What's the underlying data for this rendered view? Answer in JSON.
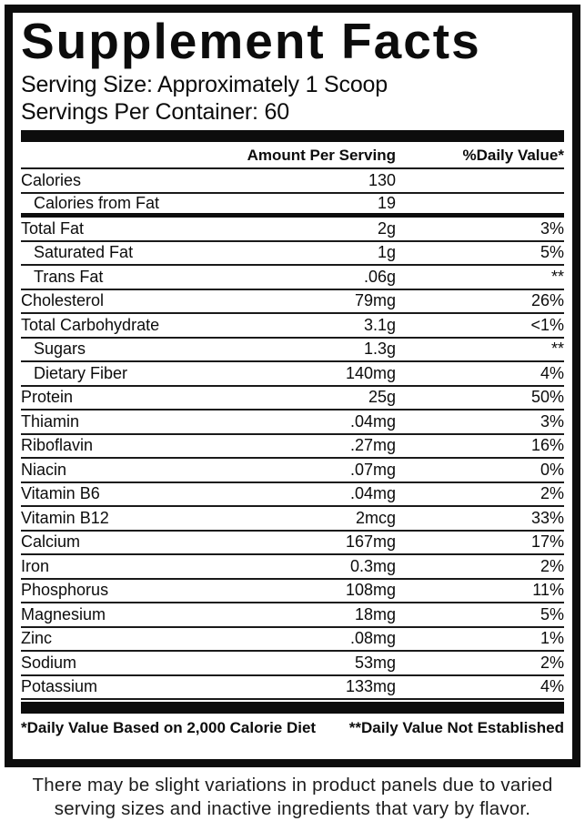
{
  "label": {
    "title": "Supplement Facts",
    "serving_size": "Serving Size: Approximately 1 Scoop",
    "servings_per_container": "Servings Per Container: 60",
    "columns": {
      "amount": "Amount Per Serving",
      "daily_value": "%Daily Value*"
    },
    "rows": [
      {
        "name": "Calories",
        "amount": "130",
        "dv": "",
        "indent": false,
        "thick_divider_below": false
      },
      {
        "name": "Calories from Fat",
        "amount": "19",
        "dv": "",
        "indent": true,
        "thick_divider_below": true
      },
      {
        "name": "Total Fat",
        "amount": "2g",
        "dv": "3%",
        "indent": false,
        "thick_divider_below": false
      },
      {
        "name": "Saturated Fat",
        "amount": "1g",
        "dv": "5%",
        "indent": true,
        "thick_divider_below": false
      },
      {
        "name": "Trans Fat",
        "amount": ".06g",
        "dv": "**",
        "indent": true,
        "thick_divider_below": false
      },
      {
        "name": "Cholesterol",
        "amount": "79mg",
        "dv": "26%",
        "indent": false,
        "thick_divider_below": false
      },
      {
        "name": "Total Carbohydrate",
        "amount": "3.1g",
        "dv": "<1%",
        "indent": false,
        "thick_divider_below": false
      },
      {
        "name": "Sugars",
        "amount": "1.3g",
        "dv": "**",
        "indent": true,
        "thick_divider_below": false
      },
      {
        "name": "Dietary Fiber",
        "amount": "140mg",
        "dv": "4%",
        "indent": true,
        "thick_divider_below": false
      },
      {
        "name": "Protein",
        "amount": "25g",
        "dv": "50%",
        "indent": false,
        "thick_divider_below": false
      },
      {
        "name": "Thiamin",
        "amount": ".04mg",
        "dv": "3%",
        "indent": false,
        "thick_divider_below": false
      },
      {
        "name": "Riboflavin",
        "amount": ".27mg",
        "dv": "16%",
        "indent": false,
        "thick_divider_below": false
      },
      {
        "name": "Niacin",
        "amount": ".07mg",
        "dv": "0%",
        "indent": false,
        "thick_divider_below": false
      },
      {
        "name": "Vitamin B6",
        "amount": ".04mg",
        "dv": "2%",
        "indent": false,
        "thick_divider_below": false
      },
      {
        "name": "Vitamin B12",
        "amount": "2mcg",
        "dv": "33%",
        "indent": false,
        "thick_divider_below": false
      },
      {
        "name": "Calcium",
        "amount": "167mg",
        "dv": "17%",
        "indent": false,
        "thick_divider_below": false
      },
      {
        "name": "Iron",
        "amount": "0.3mg",
        "dv": "2%",
        "indent": false,
        "thick_divider_below": false
      },
      {
        "name": "Phosphorus",
        "amount": "108mg",
        "dv": "11%",
        "indent": false,
        "thick_divider_below": false
      },
      {
        "name": "Magnesium",
        "amount": "18mg",
        "dv": "5%",
        "indent": false,
        "thick_divider_below": false
      },
      {
        "name": "Zinc",
        "amount": ".08mg",
        "dv": "1%",
        "indent": false,
        "thick_divider_below": false
      },
      {
        "name": "Sodium",
        "amount": "53mg",
        "dv": "2%",
        "indent": false,
        "thick_divider_below": false
      },
      {
        "name": "Potassium",
        "amount": "133mg",
        "dv": "4%",
        "indent": false,
        "thick_divider_below": false
      }
    ],
    "footnotes": {
      "left": "*Daily Value Based on 2,000 Calorie Diet",
      "right": "**Daily Value Not Established"
    }
  },
  "disclaimer": {
    "line1": "There may be slight variations in product panels due to varied",
    "line2": "serving sizes and inactive ingredients that vary by flavor."
  },
  "colors": {
    "ink": "#0d0d0d",
    "background": "#ffffff"
  }
}
